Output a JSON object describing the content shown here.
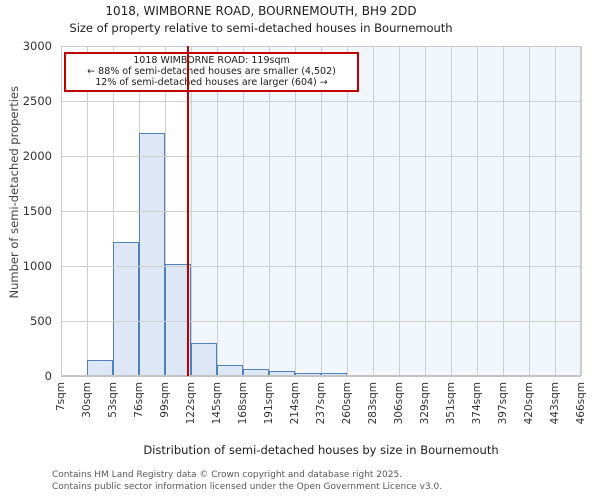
{
  "title": "1018, WIMBORNE ROAD, BOURNEMOUTH, BH9 2DD",
  "subtitle": "Size of property relative to semi-detached houses in Bournemouth",
  "annotation": {
    "line1": "1018 WIMBORNE ROAD: 119sqm",
    "line2": "← 88% of semi-detached houses are smaller (4,502)",
    "line3": "12% of semi-detached houses are larger (604) →"
  },
  "chart_data": {
    "type": "bar",
    "title": "1018, WIMBORNE ROAD, BOURNEMOUTH, BH9 2DD",
    "subtitle": "Size of property relative to semi-detached houses in Bournemouth",
    "xlabel": "Distribution of semi-detached houses by size in Bournemouth",
    "ylabel": "Number of semi-detached properties",
    "bin_edges_sqm": [
      7,
      30,
      53,
      76,
      99,
      122,
      145,
      168,
      191,
      214,
      237,
      260,
      283,
      306,
      329,
      351,
      374,
      397,
      420,
      443,
      466
    ],
    "x_tick_labels": [
      "7sqm",
      "30sqm",
      "53sqm",
      "76sqm",
      "99sqm",
      "122sqm",
      "145sqm",
      "168sqm",
      "191sqm",
      "214sqm",
      "237sqm",
      "260sqm",
      "283sqm",
      "306sqm",
      "329sqm",
      "351sqm",
      "374sqm",
      "397sqm",
      "420sqm",
      "443sqm",
      "466sqm"
    ],
    "values": [
      10,
      150,
      1220,
      2210,
      1020,
      300,
      100,
      60,
      45,
      25,
      25,
      0,
      12,
      12,
      0,
      0,
      0,
      0,
      0,
      0
    ],
    "yticks": [
      0,
      500,
      1000,
      1500,
      2000,
      2500,
      3000
    ],
    "ylim": [
      0,
      3000
    ],
    "grid": true,
    "marker_value_sqm": 119,
    "marker_color": "#bb0000",
    "bar_fill": "#dde7f5",
    "bar_edge": "#4f81bd",
    "shade_color": "#f1f5fc",
    "grid_color": "#cfcfcf"
  },
  "footer": {
    "line1": "Contains HM Land Registry data © Crown copyright and database right 2025.",
    "line2": "Contains public sector information licensed under the Open Government Licence v3.0."
  }
}
